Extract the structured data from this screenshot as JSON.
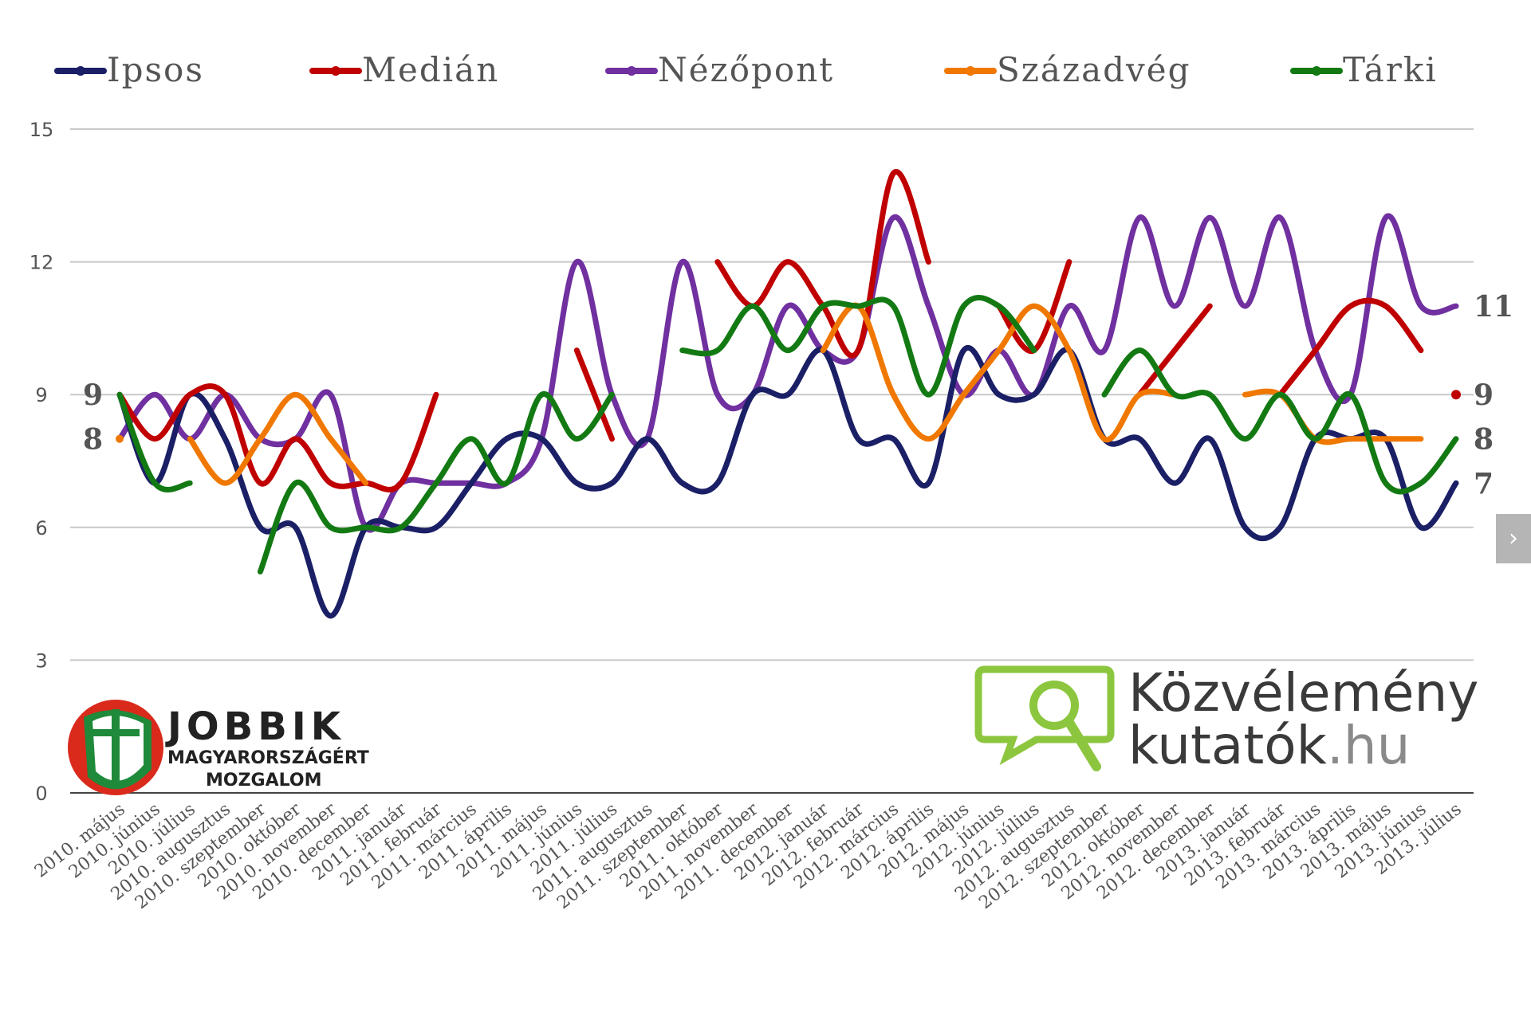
{
  "chart_data": {
    "type": "line",
    "categories": [
      "2010. május",
      "2010. június",
      "2010. július",
      "2010. augusztus",
      "2010. szeptember",
      "2010. október",
      "2010. november",
      "2010. december",
      "2011. január",
      "2011. február",
      "2011. március",
      "2011. április",
      "2011. május",
      "2011. június",
      "2011. július",
      "2011. augusztus",
      "2011. szeptember",
      "2011. október",
      "2011. november",
      "2011. december",
      "2012. január",
      "2012. február",
      "2012. március",
      "2012. április",
      "2012. május",
      "2012. június",
      "2012. július",
      "2012. augusztus",
      "2012. szeptember",
      "2012. október",
      "2012. november",
      "2012. december",
      "2013. január",
      "2013. február",
      "2013. március",
      "2013. április",
      "2013. május",
      "2013. június",
      "2013. július"
    ],
    "ylim": [
      0,
      15
    ],
    "yticks": [
      0,
      3,
      6,
      9,
      12,
      15
    ],
    "grid": true,
    "legend_position": "top",
    "series": [
      {
        "name": "Ipsos",
        "color": "#1b1f66",
        "values": [
          9,
          7,
          9,
          8,
          6,
          6,
          4,
          6,
          6,
          6,
          7,
          8,
          8,
          7,
          7,
          8,
          7,
          7,
          9,
          9,
          10,
          8,
          8,
          7,
          10,
          9,
          9,
          10,
          8,
          8,
          7,
          8,
          6,
          6,
          8,
          8,
          8,
          6,
          7
        ],
        "end_label": "7"
      },
      {
        "name": "Medián",
        "color": "#c00000",
        "values": [
          9,
          8,
          9,
          9,
          7,
          8,
          7,
          7,
          7,
          9,
          null,
          null,
          null,
          10,
          8,
          null,
          null,
          12,
          11,
          12,
          11,
          10,
          14,
          12,
          null,
          11,
          10,
          12,
          null,
          9,
          10,
          11,
          null,
          9,
          10,
          11,
          11,
          10,
          null
        ],
        "end_label": "9",
        "end_marker": 9
      },
      {
        "name": "Nézőpont",
        "color": "#7030a0",
        "values": [
          8,
          9,
          8,
          9,
          8,
          8,
          9,
          6,
          7,
          7,
          7,
          7,
          8,
          12,
          9,
          8,
          12,
          9,
          9,
          11,
          10,
          10,
          13,
          11,
          9,
          10,
          9,
          11,
          10,
          13,
          11,
          13,
          11,
          13,
          10,
          9,
          13,
          11,
          11
        ],
        "end_label": "11"
      },
      {
        "name": "Századvég",
        "color": "#f07800",
        "values": [
          8,
          null,
          8,
          7,
          8,
          9,
          8,
          7,
          null,
          null,
          null,
          null,
          null,
          null,
          null,
          null,
          null,
          null,
          null,
          null,
          10,
          11,
          9,
          8,
          9,
          10,
          11,
          10,
          8,
          9,
          9,
          null,
          9,
          9,
          8,
          8,
          8,
          8,
          null
        ],
        "end_label": "8"
      },
      {
        "name": "Tárki",
        "color": "#137a13",
        "values": [
          9,
          7,
          7,
          null,
          5,
          7,
          6,
          6,
          6,
          7,
          8,
          7,
          9,
          8,
          9,
          null,
          10,
          10,
          11,
          10,
          11,
          11,
          11,
          9,
          11,
          11,
          10,
          null,
          9,
          10,
          9,
          9,
          8,
          9,
          8,
          9,
          7,
          7,
          8
        ],
        "end_label": "8"
      }
    ],
    "left_labels": [
      "9",
      "8"
    ]
  },
  "logos": {
    "left": {
      "title": "JOBBIK",
      "line1": "MAGYARORSZÁGÉRT",
      "line2": "MOZGALOM"
    },
    "right": {
      "line1": "Közvélemény",
      "line2a": "kutatók",
      "line2b": ".hu"
    }
  },
  "nav": {
    "next_label": "›"
  }
}
